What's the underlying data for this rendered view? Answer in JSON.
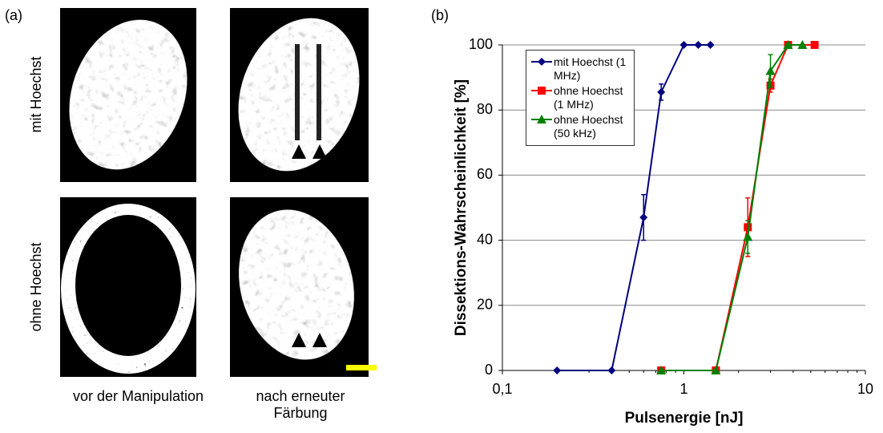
{
  "panel_a": {
    "label": "(a)",
    "row_labels": [
      "mit Hoechst",
      "ohne Hoechst"
    ],
    "column_labels": [
      "vor der Manipulation",
      "nach erneuter Färbung"
    ]
  },
  "chart_data": {
    "type": "line",
    "panel_label": "(b)",
    "x_label": "Pulsenergie [nJ]",
    "y_label": "Dissektions-Wahrscheinlichkeit [%]",
    "xscale": "log",
    "xlim": [
      0.1,
      10
    ],
    "xticks": [
      {
        "value": 0.1,
        "label": "0,1"
      },
      1,
      10
    ],
    "ylim": [
      0,
      100
    ],
    "yticks": [
      0,
      20,
      40,
      60,
      80,
      100
    ],
    "grid": true,
    "legend": "upper left",
    "series": [
      {
        "name": "mit Hoechst (1 MHz)",
        "color": "#000080",
        "marker": "diamond",
        "x": [
          0.2,
          0.4,
          0.6,
          0.75,
          1.0,
          1.2,
          1.4
        ],
        "values": [
          0,
          0,
          47,
          85.5,
          100,
          100,
          100
        ],
        "errors": [
          null,
          null,
          7,
          2.5,
          null,
          null,
          null
        ]
      },
      {
        "name": "ohne Hoechst (1 MHz)",
        "color": "#ff0000",
        "marker": "square",
        "x": [
          0.75,
          1.5,
          2.25,
          3.0,
          3.75,
          5.25
        ],
        "values": [
          0,
          0,
          44,
          87.5,
          100,
          100
        ],
        "errors": [
          null,
          null,
          9,
          2,
          null,
          null
        ]
      },
      {
        "name": "ohne Hoechst (50 kHz)",
        "color": "#008000",
        "marker": "triangle",
        "x": [
          0.75,
          1.5,
          2.25,
          3.0,
          3.75,
          4.5
        ],
        "values": [
          0,
          0,
          41,
          92,
          100,
          100
        ],
        "errors": [
          null,
          null,
          5,
          5,
          null,
          null
        ]
      }
    ]
  }
}
